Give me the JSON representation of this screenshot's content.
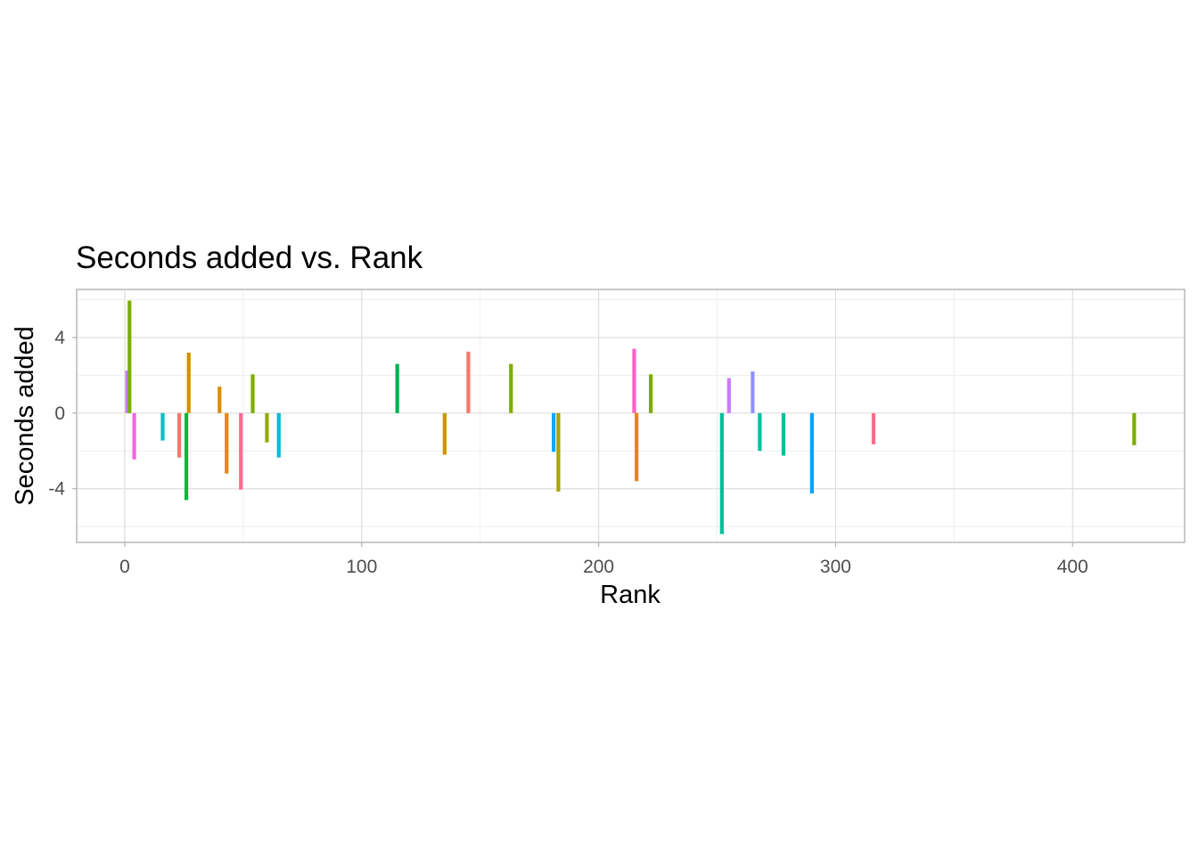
{
  "chart_data": {
    "type": "bar",
    "title": "Seconds added vs. Rank",
    "xlabel": "Rank",
    "ylabel": "Seconds added",
    "xlim": [
      -20.3,
      447.3
    ],
    "ylim": [
      -6.84,
      6.54
    ],
    "x_ticks": [
      0,
      100,
      200,
      300,
      400
    ],
    "y_ticks": [
      -4,
      0,
      4
    ],
    "x_minor": [
      50,
      150,
      250,
      350
    ],
    "y_minor": [
      -6,
      -2,
      2,
      6
    ],
    "grid": true,
    "legend": "none",
    "points": [
      {
        "x": 1,
        "y": 2.25,
        "color": "#C77CFF"
      },
      {
        "x": 2,
        "y": 5.95,
        "color": "#7CAE00"
      },
      {
        "x": 4,
        "y": -2.45,
        "color": "#F564E3"
      },
      {
        "x": 16,
        "y": -1.45,
        "color": "#00BFC4"
      },
      {
        "x": 23,
        "y": -2.35,
        "color": "#F8766D"
      },
      {
        "x": 26,
        "y": -4.6,
        "color": "#00BA38"
      },
      {
        "x": 27,
        "y": 3.2,
        "color": "#D39200"
      },
      {
        "x": 40,
        "y": 1.4,
        "color": "#DB8E00"
      },
      {
        "x": 43,
        "y": -3.2,
        "color": "#E68613"
      },
      {
        "x": 49,
        "y": -4.05,
        "color": "#FF6C91"
      },
      {
        "x": 54,
        "y": 2.05,
        "color": "#7CAE00"
      },
      {
        "x": 60,
        "y": -1.55,
        "color": "#93AA00"
      },
      {
        "x": 65,
        "y": -2.35,
        "color": "#00BAE0"
      },
      {
        "x": 115,
        "y": 2.6,
        "color": "#00B050"
      },
      {
        "x": 135,
        "y": -2.2,
        "color": "#CD9600"
      },
      {
        "x": 145,
        "y": 3.25,
        "color": "#F8766D"
      },
      {
        "x": 163,
        "y": 2.6,
        "color": "#7CAE00"
      },
      {
        "x": 181,
        "y": -2.05,
        "color": "#00A9FF"
      },
      {
        "x": 183,
        "y": -4.15,
        "color": "#ABA300"
      },
      {
        "x": 215,
        "y": 3.4,
        "color": "#FF61C3"
      },
      {
        "x": 216,
        "y": -3.6,
        "color": "#E68613"
      },
      {
        "x": 222,
        "y": 2.05,
        "color": "#7CAE00"
      },
      {
        "x": 252,
        "y": -6.4,
        "color": "#00C19A"
      },
      {
        "x": 255,
        "y": 1.85,
        "color": "#C77CFF"
      },
      {
        "x": 265,
        "y": 2.2,
        "color": "#8F91FF"
      },
      {
        "x": 268,
        "y": -2.0,
        "color": "#00BFA0"
      },
      {
        "x": 278,
        "y": -2.25,
        "color": "#00C19A"
      },
      {
        "x": 290,
        "y": -4.25,
        "color": "#00A5FF"
      },
      {
        "x": 316,
        "y": -1.65,
        "color": "#FF6C91"
      },
      {
        "x": 426,
        "y": -1.7,
        "color": "#7CAE00"
      }
    ]
  }
}
